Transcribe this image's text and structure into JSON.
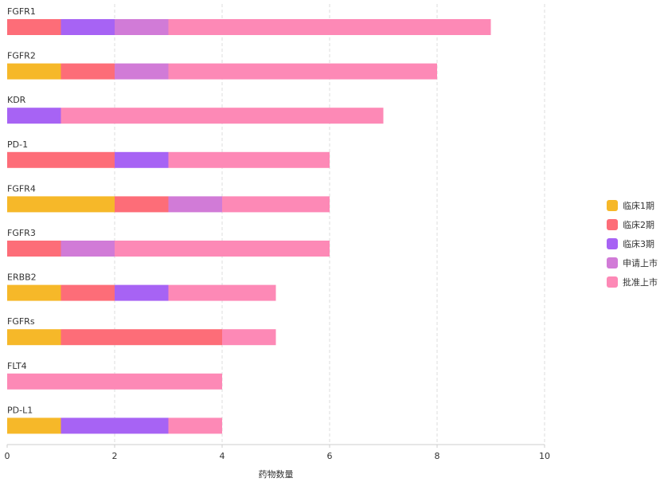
{
  "chart_data": {
    "type": "bar",
    "orientation": "horizontal",
    "stacked": true,
    "title": "",
    "xlabel": "药物数量",
    "ylabel": "",
    "xlim": [
      0,
      10
    ],
    "xticks": [
      0,
      2,
      4,
      6,
      8,
      10
    ],
    "grid": true,
    "legend_position": "right",
    "categories": [
      "FGFR1",
      "FGFR2",
      "KDR",
      "PD-1",
      "FGFR4",
      "FGFR3",
      "ERBB2",
      "FGFRs",
      "FLT4",
      "PD-L1"
    ],
    "series": [
      {
        "name": "临床1期",
        "color": "#f6b829",
        "values": [
          0,
          1,
          0,
          0,
          2,
          0,
          1,
          1,
          0,
          1
        ]
      },
      {
        "name": "临床2期",
        "color": "#fd6d78",
        "values": [
          1,
          1,
          0,
          2,
          1,
          1,
          1,
          3,
          0,
          0
        ]
      },
      {
        "name": "临床3期",
        "color": "#a763f4",
        "values": [
          1,
          0,
          1,
          1,
          0,
          0,
          1,
          0,
          0,
          2
        ]
      },
      {
        "name": "申请上市",
        "color": "#d17bd7",
        "values": [
          1,
          1,
          0,
          0,
          1,
          1,
          0,
          0,
          0,
          0
        ]
      },
      {
        "name": "批准上市",
        "color": "#fd89b6",
        "values": [
          6,
          5,
          6,
          3,
          2,
          4,
          2,
          1,
          4,
          1
        ]
      }
    ]
  }
}
